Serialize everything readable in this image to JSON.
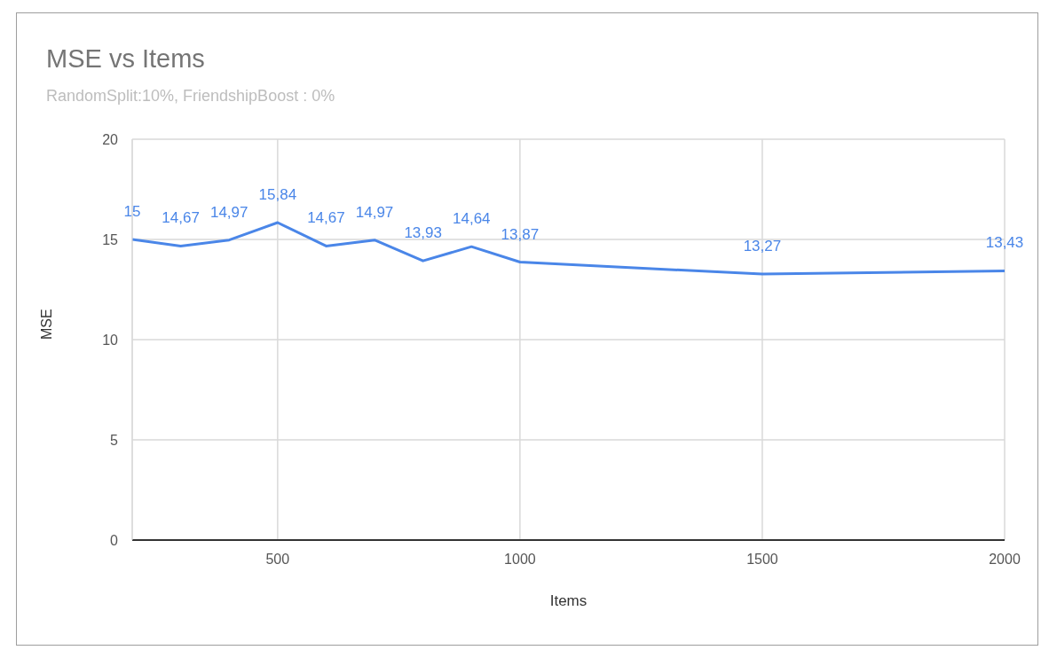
{
  "chart_data": {
    "type": "line",
    "title": "MSE vs Items",
    "subtitle": "RandomSplit:10%, FriendshipBoost : 0%",
    "xlabel": "Items",
    "ylabel": "MSE",
    "x": [
      200,
      300,
      400,
      500,
      600,
      700,
      800,
      900,
      1000,
      1500,
      2000
    ],
    "series": [
      {
        "color": "#4a86e8",
        "values": [
          15,
          14.67,
          14.97,
          15.84,
          14.67,
          14.97,
          13.93,
          14.64,
          13.87,
          13.27,
          13.43
        ],
        "value_labels": [
          "15",
          "14,67",
          "14,97",
          "15,84",
          "14,67",
          "14,97",
          "13,93",
          "14,64",
          "13,87",
          "13,27",
          "13,43"
        ]
      }
    ],
    "xlim": [
      200,
      2000
    ],
    "xticks": [
      500,
      1000,
      1500,
      2000
    ],
    "ylim": [
      0,
      20
    ],
    "yticks": [
      0,
      5,
      10,
      15,
      20
    ],
    "grid": true
  }
}
